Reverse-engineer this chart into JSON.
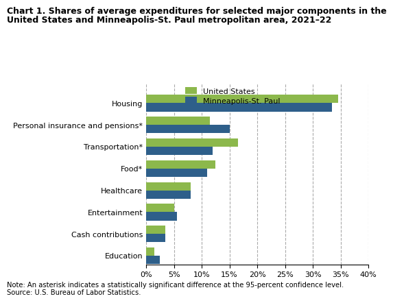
{
  "title_line1": "Chart 1. Shares of average expenditures for selected major components in the",
  "title_line2": "United States and Minneapolis-St. Paul metropolitan area, 2021–22",
  "categories": [
    "Housing",
    "Personal insurance and pensions*",
    "Transportation*",
    "Food*",
    "Healthcare",
    "Entertainment",
    "Cash contributions",
    "Education"
  ],
  "us_values": [
    34.5,
    11.5,
    16.5,
    12.5,
    8.0,
    5.0,
    3.5,
    1.5
  ],
  "mpls_values": [
    33.5,
    15.0,
    12.0,
    11.0,
    8.0,
    5.5,
    3.5,
    2.5
  ],
  "us_color": "#8CB84C",
  "mpls_color": "#2E5F8A",
  "legend_labels": [
    "United States",
    "Minneapolis-St. Paul"
  ],
  "xlim": [
    0,
    40
  ],
  "xticks": [
    0,
    5,
    10,
    15,
    20,
    25,
    30,
    35,
    40
  ],
  "note": "Note: An asterisk indicates a statistically significant difference at the 95-percent confidence level.",
  "source": "Source: U.S. Bureau of Labor Statistics.",
  "bar_height": 0.38,
  "title_fontsize": 9.0,
  "axis_fontsize": 8.0,
  "legend_fontsize": 8.0,
  "note_fontsize": 7.2,
  "grid_color": "#AAAAAA"
}
